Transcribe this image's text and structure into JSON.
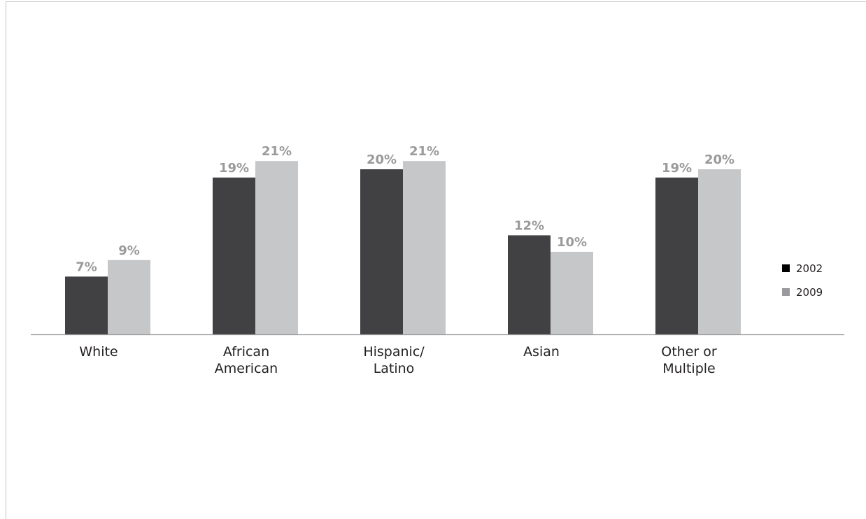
{
  "chart_data": {
    "type": "bar",
    "title": "",
    "xlabel": "",
    "ylabel": "",
    "categories": [
      [
        "White"
      ],
      [
        "African",
        "American"
      ],
      [
        "Hispanic/",
        "Latino"
      ],
      [
        "Asian"
      ],
      [
        "Other or",
        "Multiple"
      ]
    ],
    "series": [
      {
        "name": "2002",
        "color": "#414042",
        "values": [
          7,
          19,
          20,
          12,
          19
        ],
        "labels": [
          "7%",
          "19%",
          "20%",
          "12%",
          "19%"
        ]
      },
      {
        "name": "2009",
        "color": "#c6c7c8",
        "values": [
          9,
          21,
          21,
          10,
          20
        ],
        "labels": [
          "9%",
          "21%",
          "21%",
          "10%",
          "20%"
        ]
      }
    ],
    "legend_marker_colors": [
      "#000000",
      "#9a9a9c"
    ],
    "ylim": [
      0,
      24
    ],
    "grid": false,
    "legend_position": "right"
  }
}
